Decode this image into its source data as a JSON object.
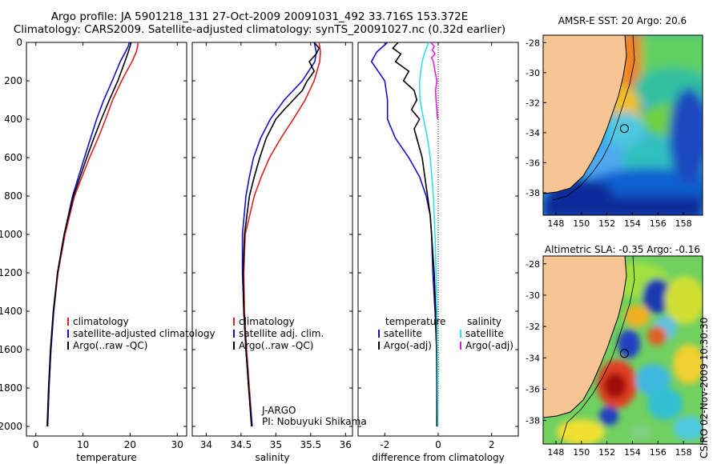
{
  "title_line1": "Argo profile: JA 5901218_131 27-Oct-2009 20091031_492 33.716S 153.372E",
  "title_line2": "Climatology: CARS2009. Satellite-adjusted climatology: synTS_20091027.nc (0.32d earlier)",
  "stamp": "CSIRO 02-Nov-2009 10:30:30",
  "colors": {
    "clim": "#e02020",
    "sat": "#1010d0",
    "argo": "#000000",
    "sat_sal": "#30e0e8",
    "argo_sal": "#e020e0",
    "land": "#f7c594"
  },
  "chart_data": [
    {
      "type": "line",
      "id": "temperature",
      "xlabel": "temperature",
      "xlim": [
        -2,
        32
      ],
      "ylim": [
        2050,
        0
      ],
      "xticks": [
        "0",
        "10",
        "20",
        "30"
      ],
      "xtick_values": [
        0,
        10,
        20,
        30
      ],
      "yticks": [
        "0",
        "200",
        "400",
        "600",
        "800",
        "1000",
        "1200",
        "1400",
        "1600",
        "1800",
        "2000"
      ],
      "ytick_values": [
        0,
        200,
        400,
        600,
        800,
        1000,
        1200,
        1400,
        1600,
        1800,
        2000
      ],
      "legend": [
        "climatology",
        "satellite-adjusted climatology",
        "Argo(..raw -QC)"
      ],
      "series": [
        {
          "name": "climatology",
          "color": "clim",
          "depth": [
            0,
            20,
            50,
            100,
            200,
            300,
            400,
            500,
            600,
            800,
            1000,
            1200,
            1400,
            1600,
            1800,
            2000
          ],
          "values": [
            21.7,
            21.6,
            21.3,
            20.4,
            18.2,
            16.3,
            14.8,
            13.2,
            11.4,
            8.2,
            6.2,
            4.7,
            3.8,
            3.2,
            2.8,
            2.5
          ]
        },
        {
          "name": "satellite-adjusted climatology",
          "color": "sat",
          "depth": [
            0,
            20,
            50,
            100,
            200,
            300,
            400,
            500,
            600,
            800,
            1000,
            1200,
            1400,
            1600,
            1800,
            2000
          ],
          "values": [
            19.8,
            19.6,
            19.0,
            17.9,
            16.2,
            14.4,
            12.9,
            11.6,
            10.3,
            7.8,
            6.0,
            4.6,
            3.8,
            3.2,
            2.8,
            2.5
          ]
        },
        {
          "name": "Argo(..raw -QC)",
          "color": "argo",
          "depth": [
            0,
            20,
            50,
            100,
            200,
            300,
            400,
            500,
            600,
            800,
            1000,
            1200,
            1400,
            1600,
            1800,
            2000
          ],
          "values": [
            20.2,
            20.0,
            19.6,
            18.9,
            17.4,
            15.6,
            13.9,
            12.3,
            10.8,
            8.0,
            6.0,
            4.6,
            3.7,
            3.1,
            2.7,
            2.4
          ]
        }
      ]
    },
    {
      "type": "line",
      "id": "salinity",
      "xlabel": "salinity",
      "xlim": [
        33.8,
        36.1
      ],
      "ylim": [
        2050,
        0
      ],
      "xticks": [
        "34",
        "34.5",
        "35",
        "35.5",
        "36"
      ],
      "xtick_values": [
        34,
        34.5,
        35,
        35.5,
        36
      ],
      "legend": [
        "climatology",
        "satellite adj. clim.",
        "Argo(..raw -QC)"
      ],
      "annotation": [
        "J-ARGO",
        "PI: Nobuyuki Shikama"
      ],
      "series": [
        {
          "name": "climatology",
          "color": "clim",
          "depth": [
            0,
            50,
            100,
            200,
            300,
            400,
            500,
            600,
            700,
            800,
            1000,
            1200,
            1400,
            1600,
            1800,
            2000
          ],
          "values": [
            35.62,
            35.64,
            35.63,
            35.55,
            35.42,
            35.25,
            35.07,
            34.91,
            34.79,
            34.69,
            34.56,
            34.54,
            34.55,
            34.58,
            34.62,
            34.66
          ]
        },
        {
          "name": "satellite adj. clim.",
          "color": "sat",
          "depth": [
            0,
            50,
            100,
            200,
            300,
            400,
            500,
            600,
            700,
            800,
            1000,
            1200,
            1400,
            1600,
            1800,
            2000
          ],
          "values": [
            35.55,
            35.58,
            35.56,
            35.38,
            35.12,
            34.92,
            34.78,
            34.68,
            34.62,
            34.57,
            34.52,
            34.52,
            34.54,
            34.57,
            34.61,
            34.66
          ]
        },
        {
          "name": "Argo(..raw -QC)",
          "color": "argo",
          "depth": [
            0,
            30,
            60,
            100,
            150,
            200,
            250,
            300,
            350,
            400,
            500,
            600,
            700,
            800,
            1000,
            1200,
            1400,
            1600,
            1800,
            2000
          ],
          "values": [
            35.55,
            35.62,
            35.58,
            35.48,
            35.55,
            35.45,
            35.38,
            35.25,
            35.12,
            35.0,
            34.86,
            34.77,
            34.69,
            34.62,
            34.55,
            34.53,
            34.54,
            34.57,
            34.61,
            34.65
          ]
        }
      ]
    },
    {
      "type": "line",
      "id": "difference",
      "xlabel": "difference from climatology",
      "xlim": [
        -3,
        3
      ],
      "ylim": [
        2050,
        0
      ],
      "xticks": [
        "-2",
        "0",
        "2"
      ],
      "xtick_values": [
        -2,
        0,
        2
      ],
      "legend_temperature": [
        "temperature",
        "satellite",
        "Argo(-adj)"
      ],
      "legend_salinity": [
        "salinity",
        "satellite",
        "Argo(-adj)"
      ],
      "series": [
        {
          "name": "temperature satellite",
          "color": "sat",
          "depth": [
            0,
            50,
            100,
            200,
            300,
            400,
            500,
            600,
            700,
            800,
            900,
            1000,
            1200,
            1400,
            1600,
            1800,
            2000
          ],
          "values": [
            -1.9,
            -2.3,
            -2.5,
            -2.0,
            -1.9,
            -1.9,
            -1.6,
            -1.1,
            -0.7,
            -0.45,
            -0.3,
            -0.25,
            -0.2,
            -0.12,
            -0.06,
            -0.03,
            -0.02
          ]
        },
        {
          "name": "temperature Argo(-adj)",
          "color": "argo",
          "depth": [
            0,
            30,
            60,
            100,
            150,
            200,
            250,
            300,
            350,
            400,
            450,
            500,
            600,
            700,
            800,
            900,
            1000,
            1100,
            1200,
            1400,
            1600,
            1800,
            2000
          ],
          "values": [
            -1.5,
            -1.7,
            -1.4,
            -1.6,
            -1.1,
            -1.3,
            -0.9,
            -0.8,
            -1.0,
            -0.7,
            -0.9,
            -0.8,
            -0.6,
            -0.5,
            -0.4,
            -0.3,
            -0.25,
            -0.2,
            -0.15,
            -0.1,
            -0.06,
            -0.05,
            -0.05
          ]
        },
        {
          "name": "salinity satellite",
          "color": "sat_sal",
          "depth": [
            0,
            50,
            100,
            200,
            300,
            400,
            500,
            600,
            700,
            800,
            1000,
            1200,
            1400,
            1600,
            1800,
            2000
          ],
          "values": [
            -0.35,
            -0.5,
            -0.6,
            -0.7,
            -0.68,
            -0.55,
            -0.4,
            -0.3,
            -0.24,
            -0.18,
            -0.12,
            -0.08,
            -0.05,
            -0.03,
            -0.02,
            -0.01
          ]
        },
        {
          "name": "salinity Argo(-adj)",
          "color": "argo_sal",
          "depth": [
            0,
            20,
            40,
            60,
            80,
            100,
            150,
            200,
            250,
            300,
            350,
            400
          ],
          "values": [
            -0.28,
            -0.15,
            -0.22,
            -0.12,
            -0.25,
            -0.18,
            -0.12,
            -0.05,
            -0.1,
            -0.08,
            -0.05,
            -0.02
          ]
        }
      ]
    },
    {
      "type": "heatmap",
      "id": "sst_map",
      "title": "AMSR-E SST: 20 Argo: 20.6",
      "xticks": [
        "148",
        "150",
        "152",
        "154",
        "156",
        "158"
      ],
      "xtick_values": [
        148,
        150,
        152,
        154,
        156,
        158
      ],
      "yticks": [
        "-28",
        "-30",
        "-32",
        "-34",
        "-36",
        "-38"
      ],
      "ytick_values": [
        -28,
        -30,
        -32,
        -34,
        -36,
        -38
      ],
      "xlim": [
        147,
        159.5
      ],
      "ylim": [
        -39.5,
        -27.5
      ],
      "argo_position": [
        153.37,
        -33.72
      ]
    },
    {
      "type": "heatmap",
      "id": "sla_map",
      "title": "Altimetric SLA: -0.35 Argo: -0.16",
      "xticks": [
        "148",
        "150",
        "152",
        "154",
        "156",
        "158"
      ],
      "xtick_values": [
        148,
        150,
        152,
        154,
        156,
        158
      ],
      "yticks": [
        "-28",
        "-30",
        "-32",
        "-34",
        "-36",
        "-38"
      ],
      "ytick_values": [
        -28,
        -30,
        -32,
        -34,
        -36,
        -38
      ],
      "xlim": [
        147,
        159.5
      ],
      "ylim": [
        -39.5,
        -27.5
      ],
      "argo_position": [
        153.37,
        -33.72
      ]
    }
  ]
}
